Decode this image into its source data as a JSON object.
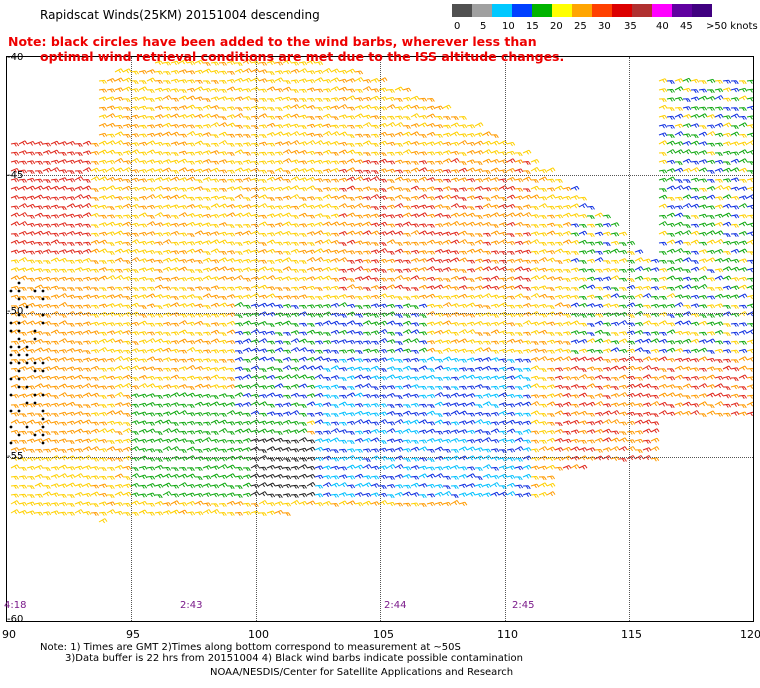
{
  "title": "Rapidscat Winds(25KM) 20151004 descending",
  "note_line1": "Note: black circles have been added to the wind barbs, wherever less than",
  "note_line2": "optimal wind retrieval conditions are met due to the ISS altitude changes.",
  "legend": {
    "labels": [
      "0",
      "5",
      "10",
      "15",
      "20",
      "25",
      "30",
      "35",
      "40",
      "45",
      ">50 knots"
    ],
    "colors": [
      "#505050",
      "#a0a0a0",
      "#00c8ff",
      "#0040ff",
      "#00b400",
      "#ffff00",
      "#ffa500",
      "#ff4000",
      "#dc0000",
      "#b03030",
      "#ff00ff",
      "#6000a0",
      "#400080"
    ]
  },
  "axes": {
    "lat_labels": [
      "-40",
      "-45",
      "-50",
      "-55",
      "-60"
    ],
    "lon_labels": [
      "90",
      "95",
      "100",
      "105",
      "110",
      "115",
      "120"
    ]
  },
  "time_labels": [
    "4:18",
    "2:43",
    "2:44",
    "2:45"
  ],
  "footer": {
    "line1": "Note: 1) Times are GMT 2)Times along bottom correspond to measurement at ~50S",
    "line2": "3)Data buffer is 22 hrs from 20151004 4) Black wind barbs indicate possible contamination",
    "line3": "NOAA/NESDIS/Center for Satellite Applications and Research"
  }
}
